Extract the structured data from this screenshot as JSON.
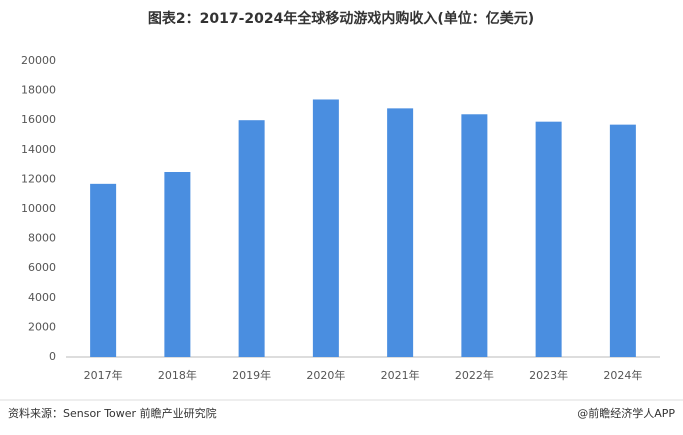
{
  "chart_data": {
    "type": "bar",
    "title": "图表2：2017-2024年全球移动游戏内购收入(单位：亿美元)",
    "categories": [
      "2017年",
      "2018年",
      "2019年",
      "2020年",
      "2021年",
      "2022年",
      "2023年",
      "2024年"
    ],
    "values": [
      11700,
      12500,
      16000,
      17400,
      16800,
      16400,
      15900,
      15700
    ],
    "color": "#4a8ee0",
    "ylim": [
      0,
      20000
    ],
    "yticks": [
      0,
      2000,
      4000,
      6000,
      8000,
      10000,
      12000,
      14000,
      16000,
      18000,
      20000
    ],
    "grid": false
  },
  "footer": {
    "source": "资料来源：Sensor Tower 前瞻产业研究院",
    "credit": "@前瞻经济学人APP"
  }
}
